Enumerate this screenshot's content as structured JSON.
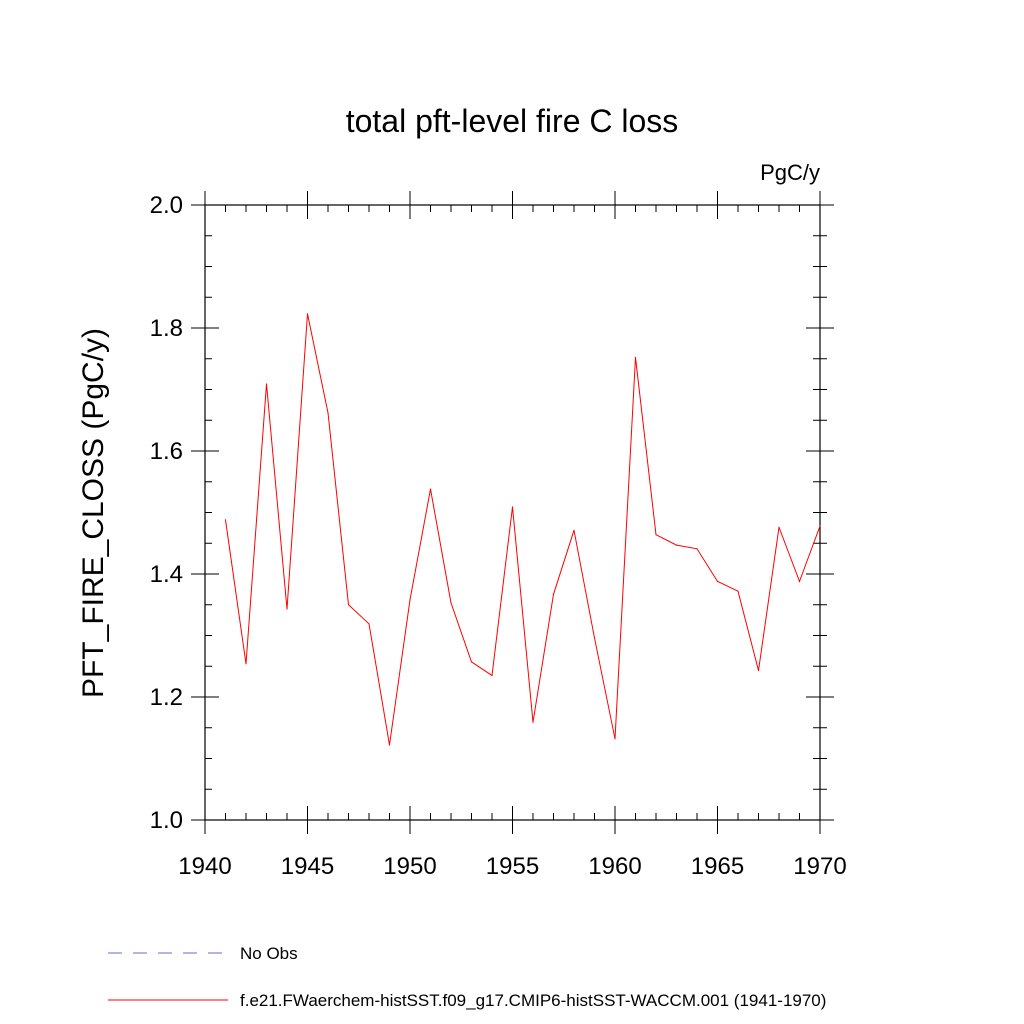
{
  "chart_data": {
    "type": "line",
    "title": "total pft-level fire C loss",
    "units": "PgC/y",
    "ylabel": "PFT_FIRE_CLOSS  (PgC/y)",
    "xlabel": "",
    "xlim": [
      1940,
      1970
    ],
    "ylim": [
      1.0,
      2.0
    ],
    "x_ticks": [
      1940,
      1945,
      1950,
      1955,
      1960,
      1965,
      1970
    ],
    "x_tick_labels": [
      "1940",
      "1945",
      "1950",
      "1955",
      "1960",
      "1965",
      "1970"
    ],
    "y_ticks": [
      1.0,
      1.2,
      1.4,
      1.6,
      1.8,
      2.0
    ],
    "y_tick_labels": [
      "1.0",
      "1.2",
      "1.4",
      "1.6",
      "1.8",
      "2.0"
    ],
    "x_minor_step": 1,
    "y_minor_step": 0.05,
    "grid": false,
    "legend_placement": "bottom",
    "series": [
      {
        "name": "f.e21.FWaerchem-histSST.f09_g17.CMIP6-histSST-WACCM.001 (1941-1970)",
        "color": "#ff0000",
        "style": "solid",
        "x": [
          1941,
          1942,
          1943,
          1944,
          1945,
          1946,
          1947,
          1948,
          1949,
          1950,
          1951,
          1952,
          1953,
          1954,
          1955,
          1956,
          1957,
          1958,
          1959,
          1960,
          1961,
          1962,
          1963,
          1964,
          1965,
          1966,
          1967,
          1968,
          1969,
          1970
        ],
        "y": [
          1.488,
          1.254,
          1.709,
          1.343,
          1.823,
          1.662,
          1.35,
          1.319,
          1.122,
          1.358,
          1.538,
          1.353,
          1.257,
          1.235,
          1.509,
          1.159,
          1.367,
          1.471,
          1.296,
          1.132,
          1.752,
          1.464,
          1.447,
          1.441,
          1.388,
          1.372,
          1.243,
          1.476,
          1.388,
          1.478
        ]
      }
    ],
    "legend": [
      {
        "label": "No Obs",
        "color": "#6a6ad0",
        "style": "dashed"
      },
      {
        "label": "f.e21.FWaerchem-histSST.f09_g17.CMIP6-histSST-WACCM.001 (1941-1970)",
        "color": "#ff0000",
        "style": "solid"
      }
    ]
  }
}
